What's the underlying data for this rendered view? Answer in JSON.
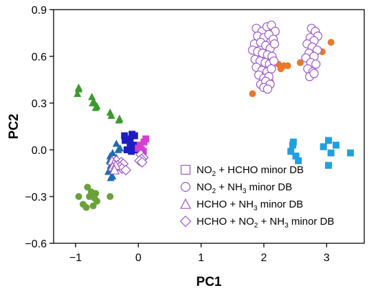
{
  "chart_data": {
    "type": "scatter",
    "xlabel": "PC1",
    "ylabel": "PC2",
    "xlim": [
      -1.35,
      3.6
    ],
    "ylim": [
      -0.6,
      0.9
    ],
    "xticks": [
      -1,
      0,
      1,
      2,
      3
    ],
    "yticks": [
      -0.6,
      -0.3,
      0.0,
      0.3,
      0.6,
      0.9
    ],
    "xtick_labels": [
      "−1",
      "0",
      "1",
      "2",
      "3"
    ],
    "ytick_labels": [
      "−0.6",
      "−0.3",
      "0.0",
      "0.3",
      "0.6",
      "0.9"
    ],
    "legend": {
      "placement": "bottom-right",
      "color": "#9b55c9",
      "entries": [
        {
          "marker": "square",
          "parts": [
            {
              "t": "NO"
            },
            {
              "t": "2",
              "sub": true
            },
            {
              "t": " + HCHO minor DB"
            }
          ]
        },
        {
          "marker": "circle",
          "parts": [
            {
              "t": "NO"
            },
            {
              "t": "2",
              "sub": true
            },
            {
              "t": " + NH"
            },
            {
              "t": "3",
              "sub": true
            },
            {
              "t": " minor DB"
            }
          ]
        },
        {
          "marker": "triangle",
          "parts": [
            {
              "t": "HCHO + NH"
            },
            {
              "t": "3",
              "sub": true
            },
            {
              "t": " minor DB"
            }
          ]
        },
        {
          "marker": "diamond",
          "parts": [
            {
              "t": "HCHO + NO"
            },
            {
              "t": "2",
              "sub": true
            },
            {
              "t": " + NH"
            },
            {
              "t": "3",
              "sub": true
            },
            {
              "t": " minor DB"
            }
          ]
        }
      ]
    },
    "series": [
      {
        "color": "#3a9a2c",
        "marker": "triangle",
        "filled": true,
        "points": [
          [
            -0.95,
            0.4
          ],
          [
            -0.95,
            0.39
          ],
          [
            -0.97,
            0.36
          ],
          [
            -0.74,
            0.34
          ],
          [
            -0.71,
            0.31
          ],
          [
            -0.73,
            0.3
          ],
          [
            -0.66,
            0.28
          ],
          [
            -0.68,
            0.27
          ],
          [
            -0.45,
            0.24
          ],
          [
            -0.43,
            0.22
          ],
          [
            -0.3,
            0.2
          ],
          [
            -0.31,
            0.19
          ]
        ]
      },
      {
        "color": "#1f6db0",
        "marker": "triangle",
        "filled": true,
        "points": [
          [
            -0.35,
            0.04
          ],
          [
            -0.29,
            0.01
          ],
          [
            -0.32,
            0.0
          ],
          [
            -0.41,
            -0.02
          ],
          [
            -0.45,
            -0.04
          ],
          [
            -0.35,
            -0.05
          ],
          [
            -0.46,
            -0.07
          ],
          [
            -0.44,
            -0.1
          ],
          [
            -0.42,
            -0.12
          ],
          [
            -0.48,
            -0.14
          ],
          [
            -0.41,
            -0.17
          ],
          [
            -0.44,
            -0.18
          ]
        ]
      },
      {
        "color": "#1e1ec0",
        "marker": "square",
        "filled": true,
        "points": [
          [
            -0.22,
            0.09
          ],
          [
            -0.1,
            0.1
          ],
          [
            -0.06,
            0.09
          ],
          [
            -0.16,
            0.07
          ],
          [
            -0.21,
            0.06
          ],
          [
            -0.13,
            0.05
          ],
          [
            -0.08,
            0.03
          ],
          [
            -0.06,
            0.02
          ],
          [
            -0.13,
            0.01
          ],
          [
            -0.18,
            0.0
          ],
          [
            -0.11,
            -0.01
          ],
          [
            -0.03,
            0.0
          ]
        ]
      },
      {
        "color": "#d63fd0",
        "marker": "square",
        "filled": true,
        "points": [
          [
            0.12,
            0.07
          ],
          [
            0.09,
            0.05
          ],
          [
            0.03,
            0.03
          ],
          [
            0.0,
            0.01
          ],
          [
            0.05,
            0.0
          ],
          [
            0.08,
            -0.01
          ]
        ]
      },
      {
        "color": "#9b55c9",
        "marker": "diamond",
        "filled": false,
        "points": [
          [
            -0.35,
            -0.07
          ],
          [
            -0.27,
            -0.08
          ],
          [
            -0.24,
            -0.09
          ],
          [
            -0.33,
            -0.1
          ],
          [
            -0.29,
            -0.11
          ],
          [
            -0.26,
            -0.12
          ],
          [
            -0.2,
            -0.13
          ],
          [
            0.04,
            -0.03
          ],
          [
            0.08,
            -0.05
          ],
          [
            0.05,
            -0.06
          ],
          [
            0.02,
            -0.07
          ],
          [
            0.06,
            -0.08
          ]
        ]
      },
      {
        "color": "#9b55c9",
        "marker": "triangle",
        "filled": false,
        "points": [
          [
            -0.42,
            -0.07
          ],
          [
            -0.39,
            -0.09
          ],
          [
            -0.41,
            -0.11
          ],
          [
            -0.36,
            -0.1
          ],
          [
            -0.38,
            -0.13
          ]
        ]
      },
      {
        "color": "#6aa23a",
        "marker": "circle",
        "filled": true,
        "points": [
          [
            -0.81,
            -0.24
          ],
          [
            -0.75,
            -0.27
          ],
          [
            -0.68,
            -0.28
          ],
          [
            -0.78,
            -0.3
          ],
          [
            -0.7,
            -0.31
          ],
          [
            -0.45,
            -0.3
          ],
          [
            -0.95,
            -0.3
          ],
          [
            -0.66,
            -0.33
          ],
          [
            -0.88,
            -0.35
          ],
          [
            -0.72,
            -0.36
          ],
          [
            -0.83,
            -0.37
          ]
        ]
      },
      {
        "color": "#e87a2c",
        "marker": "circle",
        "filled": true,
        "points": [
          [
            1.82,
            0.36
          ],
          [
            2.1,
            0.44
          ],
          [
            2.05,
            0.5
          ],
          [
            2.27,
            0.52
          ],
          [
            2.32,
            0.54
          ],
          [
            2.38,
            0.54
          ],
          [
            2.58,
            0.56
          ],
          [
            2.72,
            0.58
          ],
          [
            2.93,
            0.63
          ],
          [
            3.07,
            0.69
          ],
          [
            2.23,
            0.55
          ]
        ]
      },
      {
        "color": "#9b55c9",
        "marker": "circle",
        "filled": false,
        "points": [
          [
            1.88,
            0.78
          ],
          [
            1.97,
            0.76
          ],
          [
            2.05,
            0.79
          ],
          [
            2.12,
            0.8
          ],
          [
            2.18,
            0.76
          ],
          [
            1.9,
            0.73
          ],
          [
            2.0,
            0.72
          ],
          [
            2.08,
            0.74
          ],
          [
            2.15,
            0.71
          ],
          [
            1.85,
            0.68
          ],
          [
            1.95,
            0.69
          ],
          [
            2.03,
            0.67
          ],
          [
            2.1,
            0.65
          ],
          [
            2.17,
            0.68
          ],
          [
            1.82,
            0.64
          ],
          [
            1.9,
            0.63
          ],
          [
            1.98,
            0.62
          ],
          [
            2.06,
            0.61
          ],
          [
            2.13,
            0.6
          ],
          [
            1.86,
            0.58
          ],
          [
            1.94,
            0.57
          ],
          [
            2.02,
            0.56
          ],
          [
            2.09,
            0.55
          ],
          [
            2.16,
            0.57
          ],
          [
            1.88,
            0.53
          ],
          [
            1.97,
            0.51
          ],
          [
            2.05,
            0.5
          ],
          [
            2.12,
            0.52
          ],
          [
            1.92,
            0.48
          ],
          [
            2.0,
            0.46
          ],
          [
            2.08,
            0.47
          ],
          [
            1.95,
            0.42
          ],
          [
            2.03,
            0.44
          ],
          [
            2.1,
            0.42
          ],
          [
            2.0,
            0.4
          ],
          [
            2.06,
            0.39
          ],
          [
            2.76,
            0.78
          ],
          [
            2.82,
            0.76
          ],
          [
            2.86,
            0.73
          ],
          [
            2.74,
            0.72
          ],
          [
            2.8,
            0.7
          ],
          [
            2.69,
            0.68
          ],
          [
            2.77,
            0.66
          ],
          [
            2.85,
            0.64
          ],
          [
            2.72,
            0.62
          ],
          [
            2.8,
            0.6
          ],
          [
            2.67,
            0.59
          ],
          [
            2.75,
            0.56
          ],
          [
            2.83,
            0.55
          ],
          [
            2.7,
            0.52
          ],
          [
            2.78,
            0.5
          ],
          [
            2.73,
            0.47
          ],
          [
            2.8,
            0.49
          ]
        ]
      },
      {
        "color": "#20a0e0",
        "marker": "square",
        "filled": true,
        "points": [
          [
            2.47,
            0.05
          ],
          [
            2.46,
            0.03
          ],
          [
            2.43,
            -0.01
          ],
          [
            2.51,
            -0.04
          ],
          [
            2.55,
            -0.07
          ],
          [
            2.95,
            0.02
          ],
          [
            3.03,
            0.06
          ],
          [
            3.15,
            0.03
          ],
          [
            3.07,
            -0.02
          ],
          [
            3.38,
            -0.02
          ],
          [
            3.03,
            -0.1
          ]
        ]
      }
    ]
  }
}
